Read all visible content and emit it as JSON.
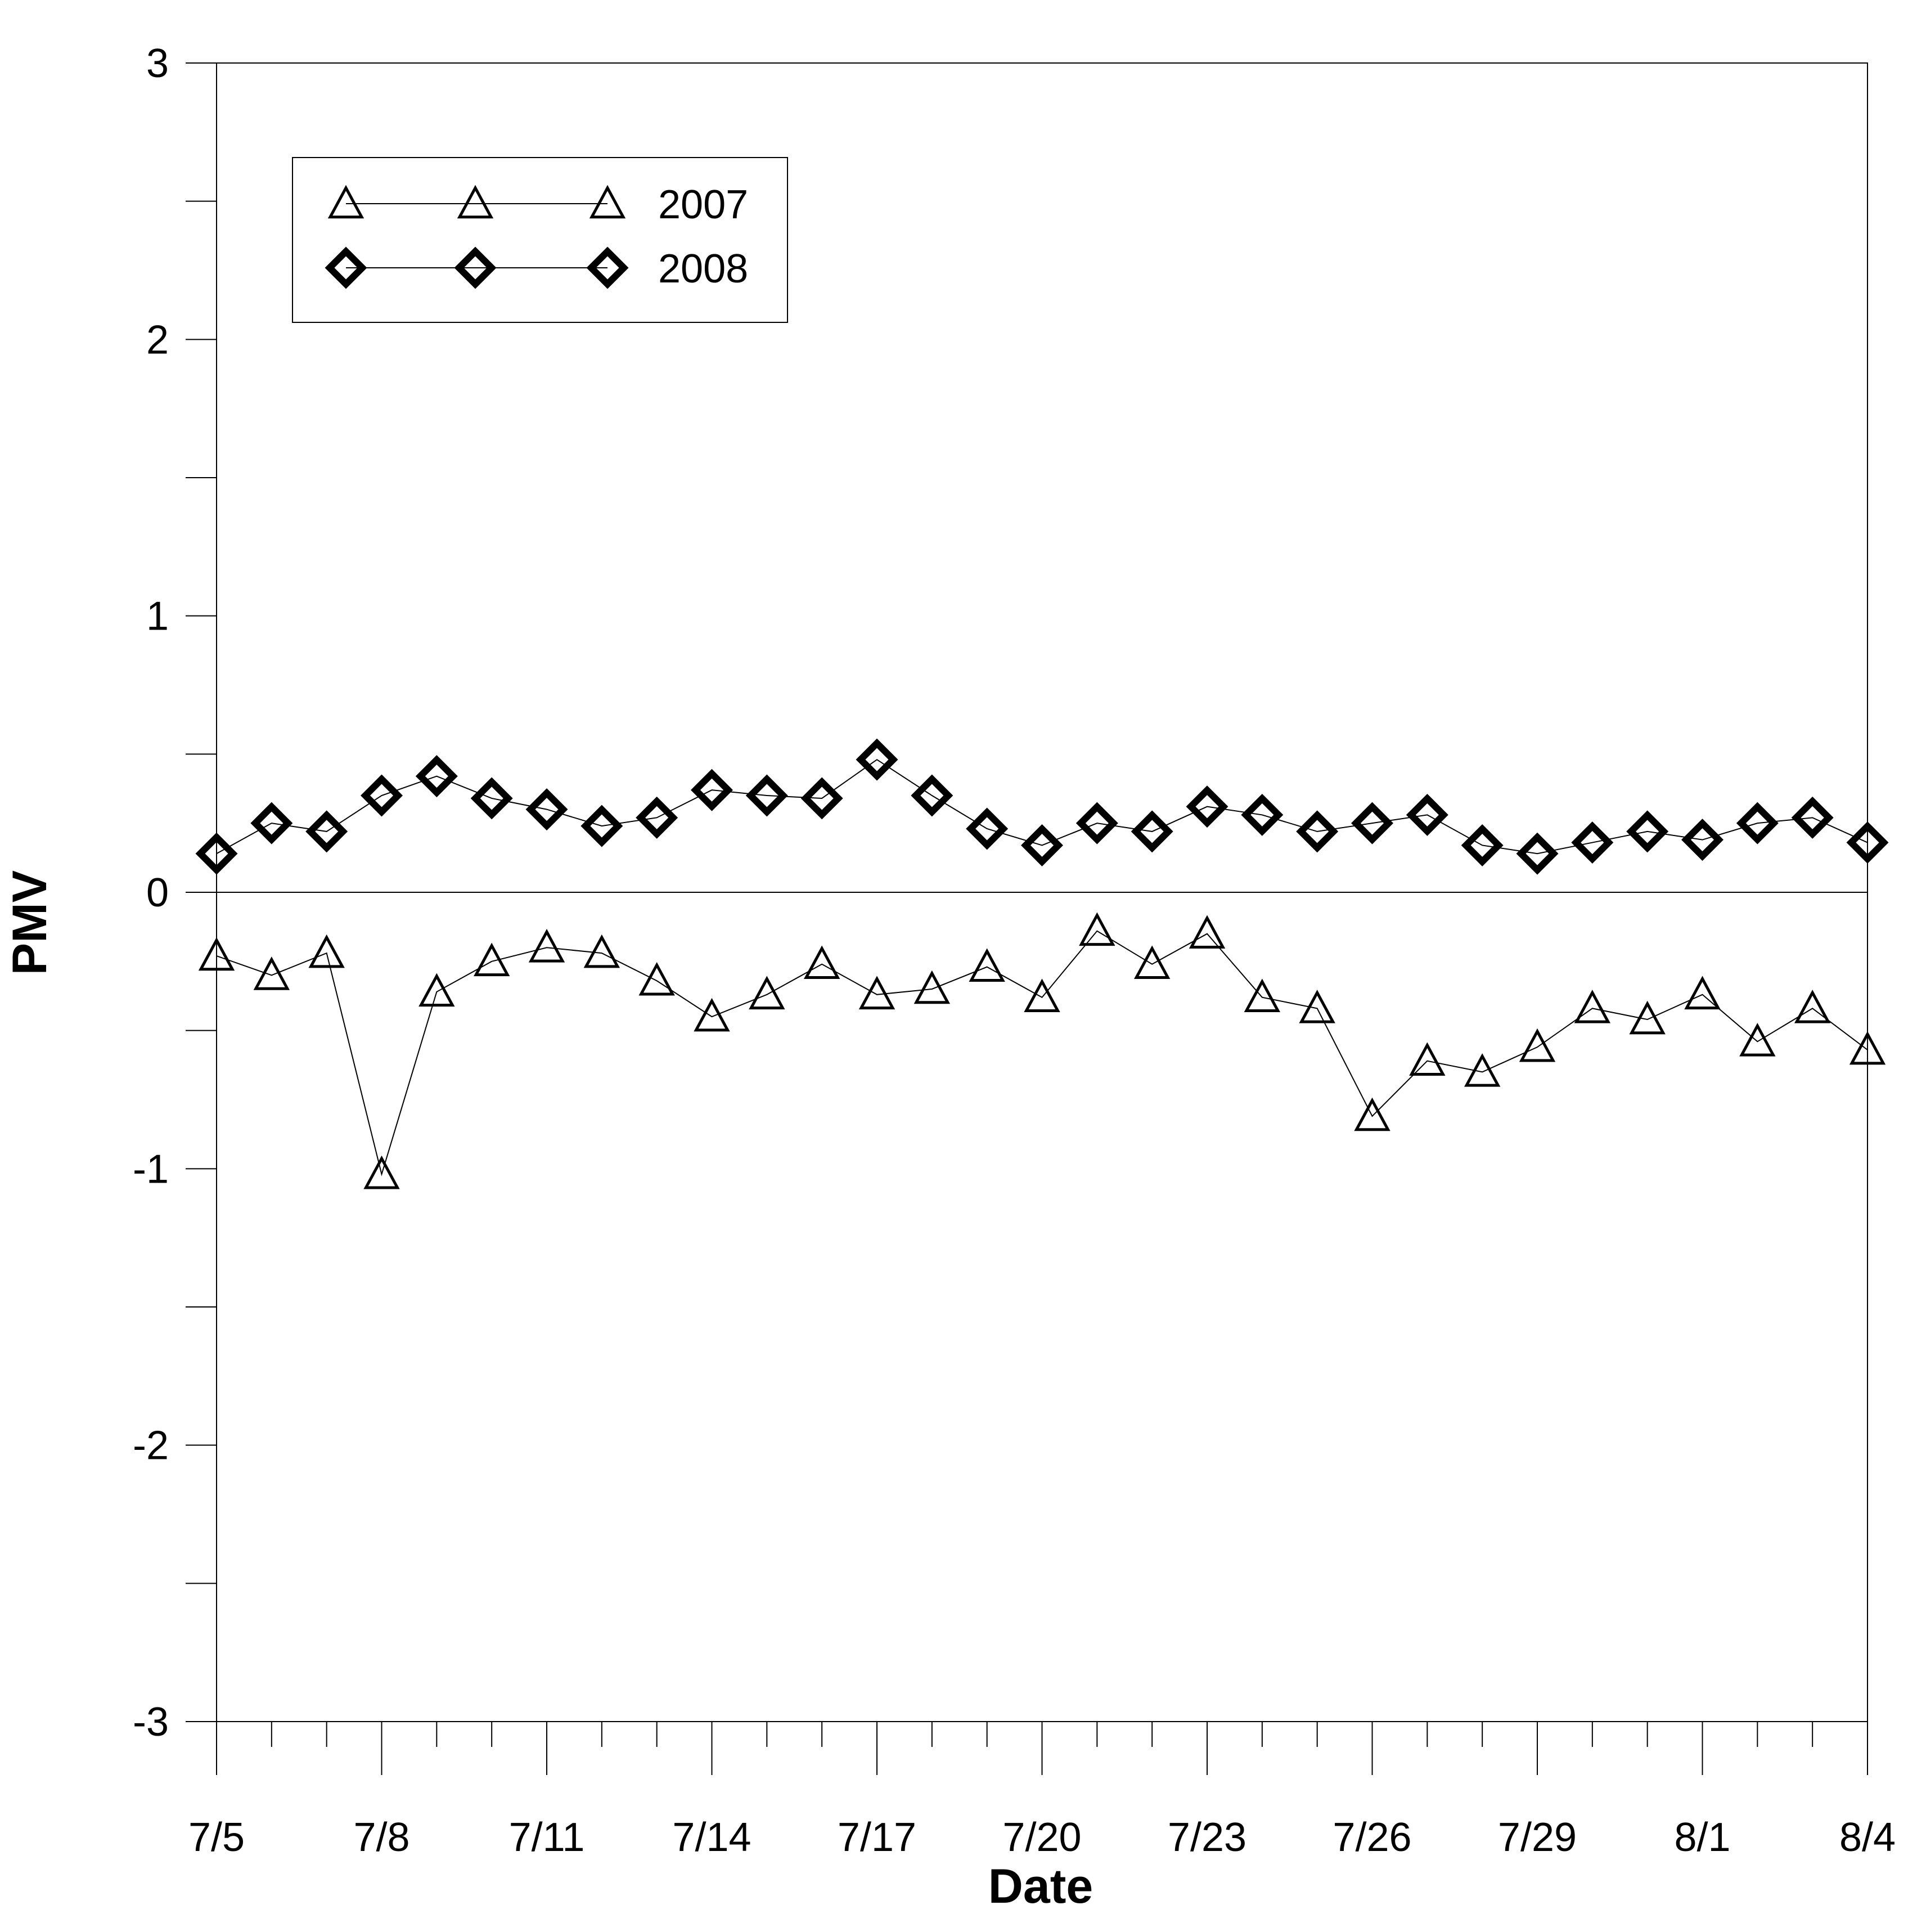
{
  "chart_data": {
    "type": "line",
    "title": "",
    "xlabel": "Date",
    "ylabel": "PMV",
    "ylim": [
      -3,
      3
    ],
    "yticks": [
      "3",
      "2",
      "1",
      "0",
      "-1",
      "-2",
      "-3"
    ],
    "y_tick_values": [
      3,
      2,
      1,
      0,
      -1,
      -2,
      -3
    ],
    "xtick_labels": [
      "7/5",
      "7/8",
      "7/11",
      "7/14",
      "7/17",
      "7/20",
      "7/23",
      "7/26",
      "7/29",
      "8/1",
      "8/4"
    ],
    "x": [
      "7/5",
      "7/6",
      "7/7",
      "7/8",
      "7/9",
      "7/10",
      "7/11",
      "7/12",
      "7/13",
      "7/14",
      "7/15",
      "7/16",
      "7/17",
      "7/18",
      "7/19",
      "7/20",
      "7/21",
      "7/22",
      "7/23",
      "7/24",
      "7/25",
      "7/26",
      "7/27",
      "7/28",
      "7/29",
      "7/30",
      "7/31",
      "8/1",
      "8/2",
      "8/3",
      "8/4"
    ],
    "grid": false,
    "zero_line": true,
    "legend_position": "top-left",
    "series": [
      {
        "name": "2007",
        "marker": "triangle-open",
        "values": [
          -0.23,
          -0.3,
          -0.22,
          -1.02,
          -0.36,
          -0.25,
          -0.2,
          -0.22,
          -0.32,
          -0.45,
          -0.37,
          -0.26,
          -0.37,
          -0.35,
          -0.27,
          -0.38,
          -0.14,
          -0.26,
          -0.15,
          -0.38,
          -0.42,
          -0.81,
          -0.61,
          -0.65,
          -0.56,
          -0.42,
          -0.46,
          -0.37,
          -0.54,
          -0.42,
          -0.57
        ]
      },
      {
        "name": "2008",
        "marker": "diamond-open-bold",
        "values": [
          0.14,
          0.25,
          0.22,
          0.35,
          0.42,
          0.34,
          0.3,
          0.24,
          0.27,
          0.37,
          0.35,
          0.34,
          0.48,
          0.35,
          0.23,
          0.17,
          0.25,
          0.22,
          0.31,
          0.28,
          0.22,
          0.25,
          0.28,
          0.17,
          0.14,
          0.18,
          0.22,
          0.19,
          0.25,
          0.27,
          0.18
        ]
      }
    ]
  }
}
